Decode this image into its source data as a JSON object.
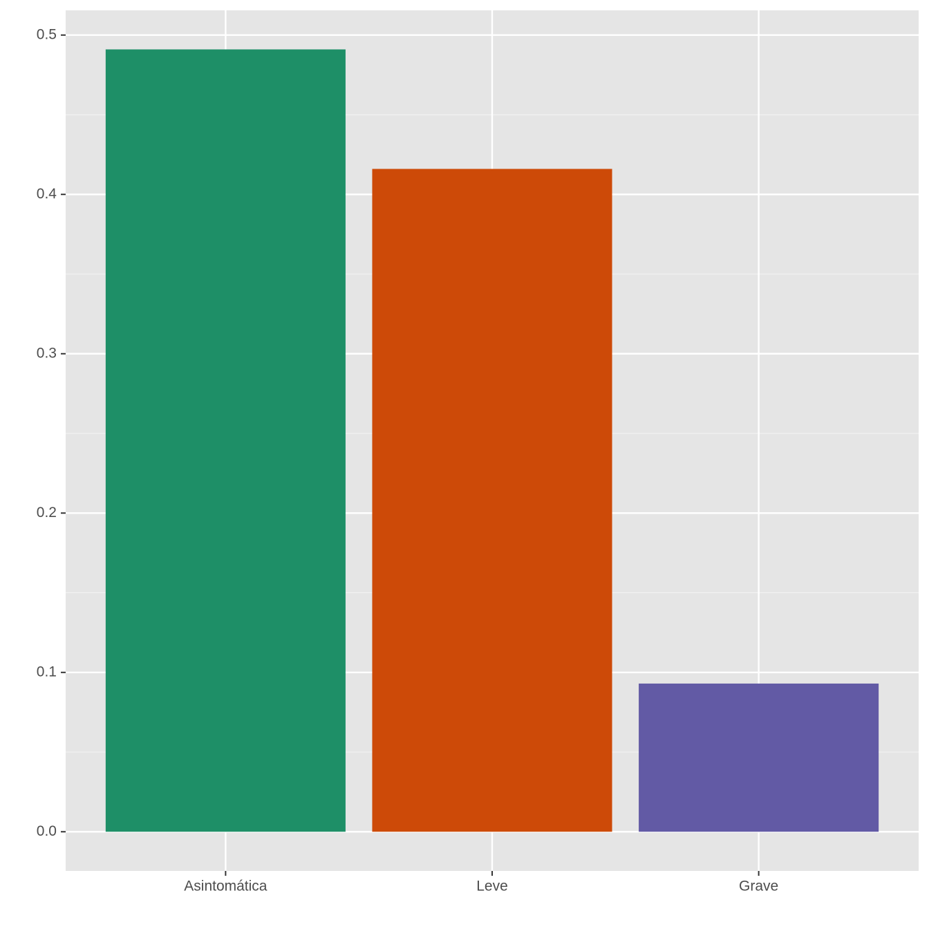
{
  "chart_data": {
    "type": "bar",
    "categories": [
      "Asintomática",
      "Leve",
      "Grave"
    ],
    "values": [
      0.491,
      0.416,
      0.093
    ],
    "colors": [
      "#1e8f67",
      "#cd4a08",
      "#625aa5"
    ],
    "ylim": [
      -0.0246,
      0.5155
    ],
    "yticks": [
      {
        "value": 0,
        "label": "0.0"
      },
      0.1,
      0.2,
      0.3,
      0.4,
      0.5
    ],
    "grid": true
  }
}
